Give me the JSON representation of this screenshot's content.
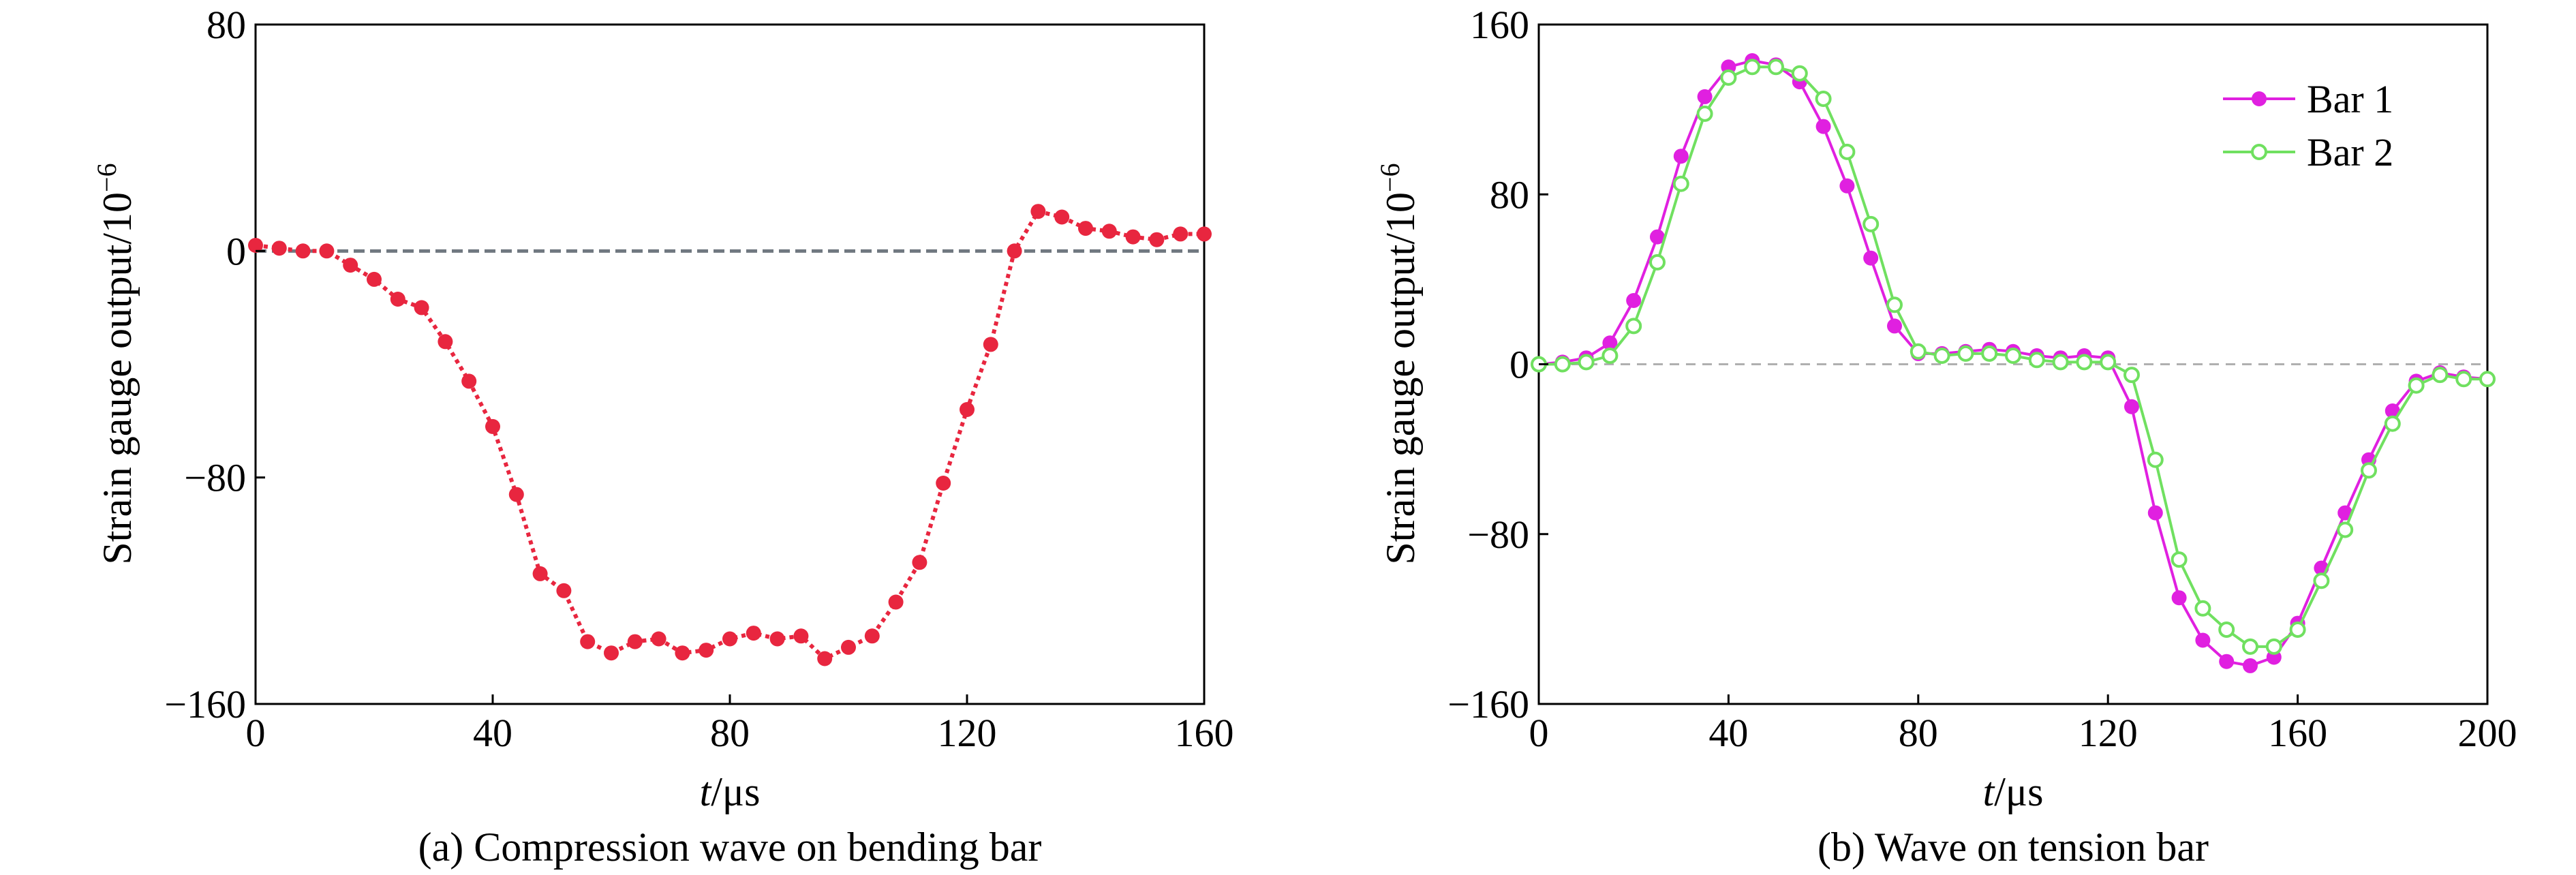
{
  "chart_data": [
    {
      "type": "line",
      "panel": "a",
      "caption": "(a) Compression wave on bending bar",
      "xlabel_italic": "t",
      "xlabel_unit": "/μs",
      "ylabel": "Strain gauge output/10",
      "ylabel_exponent": "−6",
      "xlim": [
        0,
        160
      ],
      "ylim": [
        -160,
        80
      ],
      "xticks": [
        0,
        40,
        80,
        120,
        160
      ],
      "xtick_labels": [
        "0",
        "40",
        "80",
        "120",
        "160"
      ],
      "yticks": [
        -160,
        -80,
        0,
        80
      ],
      "ytick_labels": [
        "−160",
        "−80",
        "0",
        "80"
      ],
      "reference_line": {
        "y": 0,
        "style": "dashed",
        "color": "#707880"
      },
      "grid": false,
      "legend": "none",
      "series": [
        {
          "color": "#e8263f",
          "marker": "filled-circle",
          "line": "dotted",
          "x": [
            0,
            4,
            8,
            12,
            16,
            20,
            24,
            28,
            32,
            36,
            40,
            44,
            48,
            52,
            56,
            60,
            64,
            68,
            72,
            76,
            80,
            84,
            88,
            92,
            96,
            100,
            104,
            108,
            112,
            116,
            120,
            124,
            128,
            132,
            136,
            140,
            144,
            148,
            152,
            156,
            160
          ],
          "y": [
            2,
            1,
            0,
            0,
            -5,
            -10,
            -17,
            -20,
            -32,
            -46,
            -62,
            -86,
            -114,
            -120,
            -138,
            -142,
            -138,
            -137,
            -142,
            -141,
            -137,
            -135,
            -137,
            -136,
            -144,
            -140,
            -136,
            -124,
            -110,
            -82,
            -56,
            -33,
            0,
            14,
            12,
            8,
            7,
            5,
            4,
            6,
            6
          ]
        }
      ]
    },
    {
      "type": "line",
      "panel": "b",
      "caption": "(b) Wave on tension bar",
      "xlabel_italic": "t",
      "xlabel_unit": "/μs",
      "ylabel": "Strain gauge output/10",
      "ylabel_exponent": "−6",
      "xlim": [
        0,
        200
      ],
      "ylim": [
        -160,
        160
      ],
      "xticks": [
        0,
        40,
        80,
        120,
        160,
        200
      ],
      "xtick_labels": [
        "0",
        "40",
        "80",
        "120",
        "160",
        "200"
      ],
      "yticks": [
        -160,
        -80,
        0,
        80,
        160
      ],
      "ytick_labels": [
        "−160",
        "−80",
        "0",
        "80",
        "160"
      ],
      "reference_line": {
        "y": 0,
        "style": "dashed",
        "color": "#b0b0b0"
      },
      "grid": false,
      "legend": "top-right",
      "series": [
        {
          "name": "Bar 1",
          "color": "#e020e0",
          "marker": "filled-circle",
          "x": [
            0,
            5,
            10,
            15,
            20,
            25,
            30,
            35,
            40,
            45,
            50,
            55,
            60,
            65,
            70,
            75,
            80,
            85,
            90,
            95,
            100,
            105,
            110,
            115,
            120,
            125,
            130,
            135,
            140,
            145,
            150,
            155,
            160,
            165,
            170,
            175,
            180,
            185,
            190,
            195,
            200
          ],
          "y": [
            0,
            1,
            3,
            10,
            30,
            60,
            98,
            126,
            140,
            143,
            141,
            133,
            112,
            84,
            50,
            18,
            5,
            5,
            6,
            7,
            6,
            4,
            3,
            4,
            3,
            -20,
            -70,
            -110,
            -130,
            -140,
            -142,
            -138,
            -122,
            -96,
            -70,
            -45,
            -22,
            -8,
            -4,
            -6,
            -7
          ]
        },
        {
          "name": "Bar 2",
          "color": "#70e060",
          "marker": "open-circle",
          "x": [
            0,
            5,
            10,
            15,
            20,
            25,
            30,
            35,
            40,
            45,
            50,
            55,
            60,
            65,
            70,
            75,
            80,
            85,
            90,
            95,
            100,
            105,
            110,
            115,
            120,
            125,
            130,
            135,
            140,
            145,
            150,
            155,
            160,
            165,
            170,
            175,
            180,
            185,
            190,
            195,
            200
          ],
          "y": [
            0,
            0,
            1,
            4,
            18,
            48,
            85,
            118,
            135,
            140,
            140,
            137,
            125,
            100,
            66,
            28,
            6,
            4,
            5,
            5,
            4,
            2,
            1,
            1,
            1,
            -5,
            -45,
            -92,
            -115,
            -125,
            -133,
            -133,
            -125,
            -102,
            -78,
            -50,
            -28,
            -10,
            -5,
            -7,
            -7
          ]
        }
      ]
    }
  ]
}
